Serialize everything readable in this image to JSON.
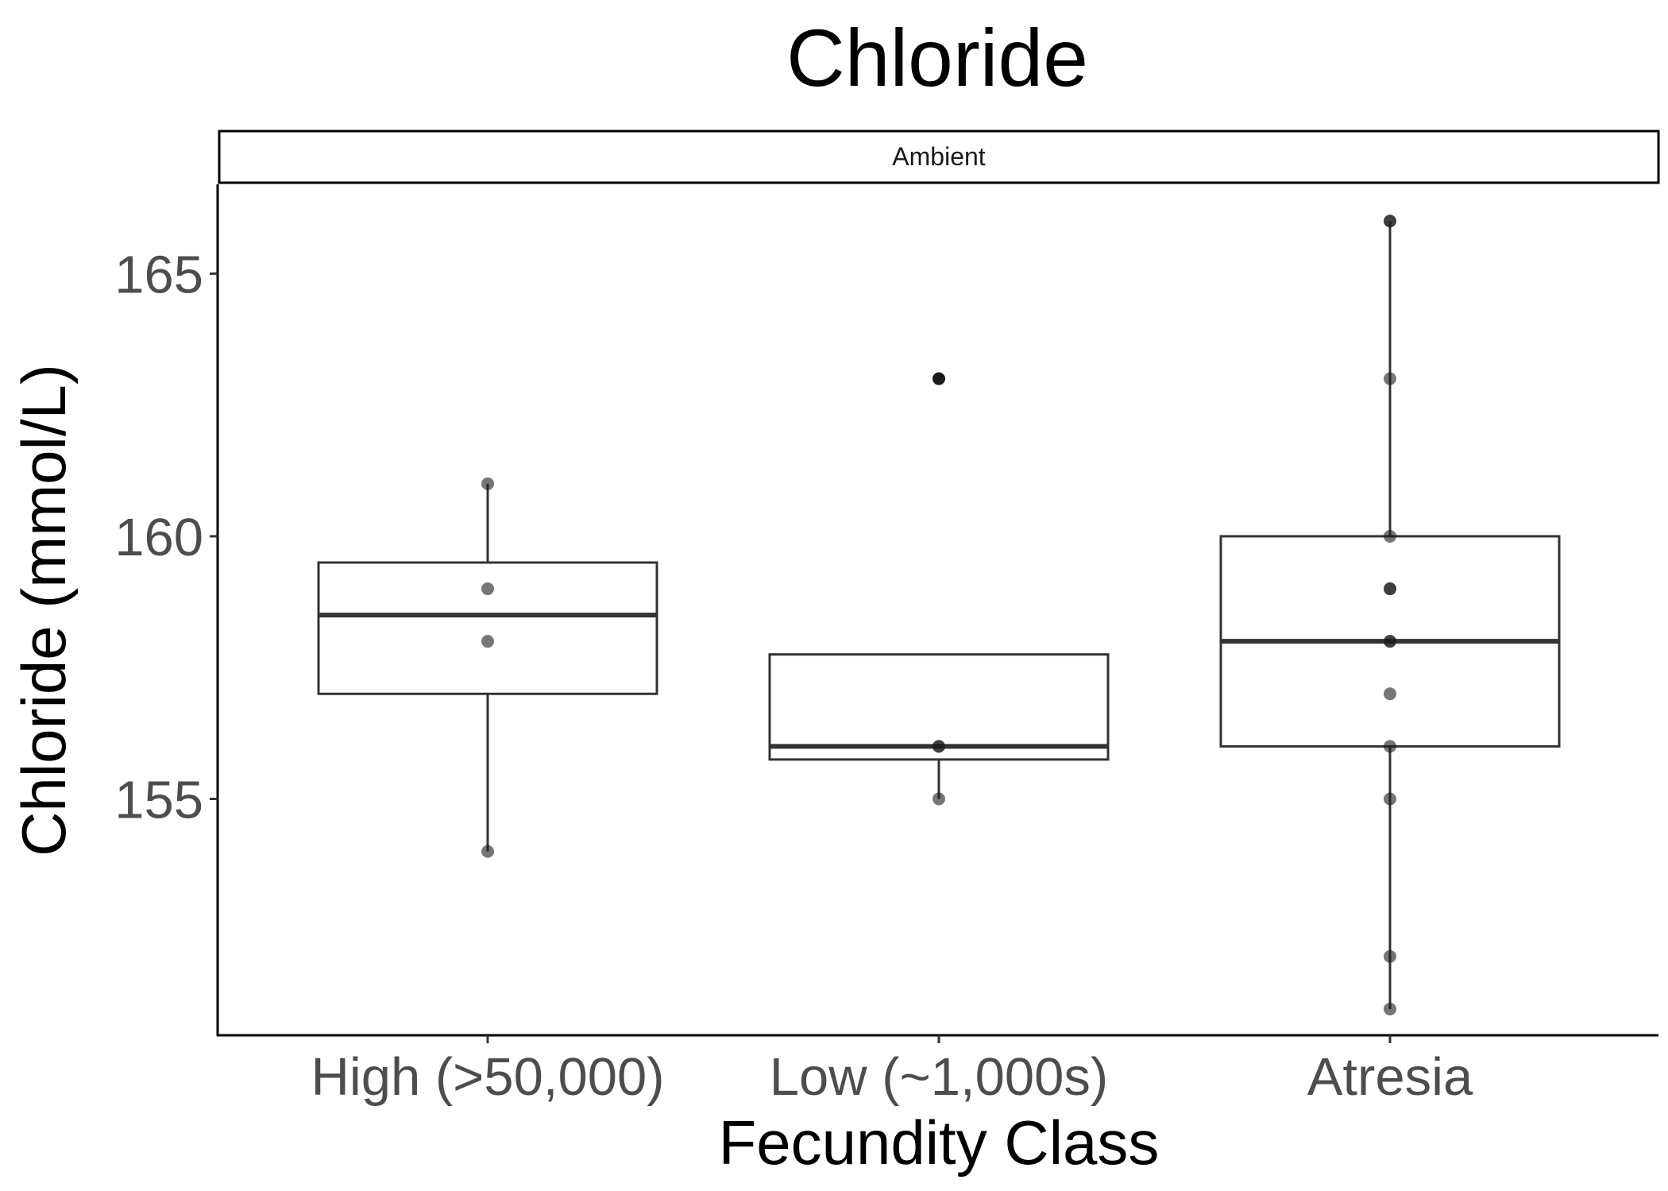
{
  "chart_data": {
    "type": "box",
    "title": "Chloride",
    "facet": "Ambient",
    "xlabel": "Fecundity Class",
    "ylabel": "Chloride (mmol/L)",
    "ylim": [
      150.5,
      166.7
    ],
    "yticks": [
      155,
      160,
      165
    ],
    "categories": [
      "High (>50,000)",
      "Low (~1,000s)",
      "Atresia"
    ],
    "boxes": [
      {
        "category": "High (>50,000)",
        "q1": 157,
        "median": 158.5,
        "q3": 159.5,
        "whisker_low": 154,
        "whisker_high": 161,
        "outliers": []
      },
      {
        "category": "Low (~1,000s)",
        "q1": 155.75,
        "median": 156,
        "q3": 157.75,
        "whisker_low": 155,
        "whisker_high": 157.75,
        "outliers": [
          163
        ]
      },
      {
        "category": "Atresia",
        "q1": 156,
        "median": 158,
        "q3": 160,
        "whisker_low": 151,
        "whisker_high": 166,
        "outliers": []
      }
    ],
    "points": [
      {
        "category": "High (>50,000)",
        "values": [
          161,
          159,
          158,
          154
        ]
      },
      {
        "category": "Low (~1,000s)",
        "values": [
          163,
          156,
          156,
          155
        ]
      },
      {
        "category": "Atresia",
        "values": [
          166,
          166,
          163,
          160,
          159,
          159,
          158,
          158,
          157,
          156,
          155,
          152,
          151
        ]
      }
    ],
    "grid": false,
    "colors": {
      "box_line": "#333333",
      "point": "#1a1a1a",
      "axis": "#000000",
      "tick_text": "#4d4d4d"
    }
  }
}
